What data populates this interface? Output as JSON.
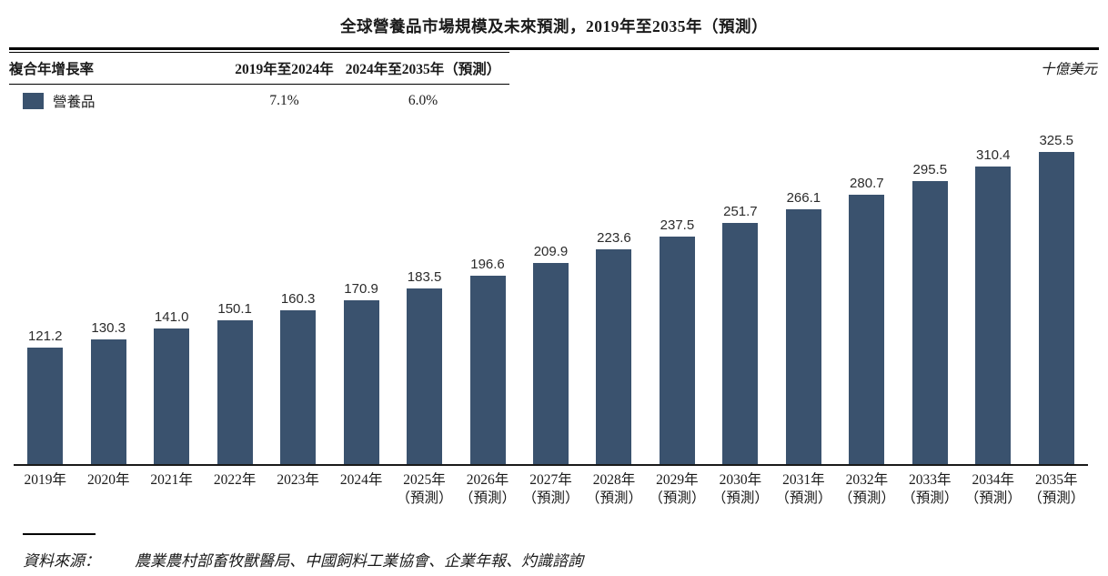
{
  "title": "全球營養品市場規模及未來預測，2019年至2035年（預測）",
  "unit_label": "十億美元",
  "cagr_table": {
    "row_header": "複合年增長率",
    "period1_header": "2019年至2024年",
    "period2_header": "2024年至2035年（預測）",
    "legend_label": "營養品",
    "period1_value": "7.1%",
    "period2_value": "6.0%"
  },
  "source": {
    "label": "資料來源：",
    "text": "農業農村部畜牧獸醫局、中國飼料工業協會、企業年報、灼識諮詢"
  },
  "colors": {
    "bar": "#3a526e",
    "axis": "#1a1a1a",
    "rule": "#000000"
  },
  "chart_data": {
    "type": "bar",
    "title": "全球營養品市場規模及未來預測，2019年至2035年（預測）",
    "ylabel": "十億美元",
    "ylim": [
      0,
      343
    ],
    "grid": false,
    "legend_position": "top-left",
    "cagr": [
      {
        "period": "2019年至2024年",
        "value": "7.1%"
      },
      {
        "period": "2024年至2035年（預測）",
        "value": "6.0%"
      }
    ],
    "categories": [
      {
        "year": "2019年",
        "note": ""
      },
      {
        "year": "2020年",
        "note": ""
      },
      {
        "year": "2021年",
        "note": ""
      },
      {
        "year": "2022年",
        "note": ""
      },
      {
        "year": "2023年",
        "note": ""
      },
      {
        "year": "2024年",
        "note": ""
      },
      {
        "year": "2025年",
        "note": "（預測）"
      },
      {
        "year": "2026年",
        "note": "（預測）"
      },
      {
        "year": "2027年",
        "note": "（預測）"
      },
      {
        "year": "2028年",
        "note": "（預測）"
      },
      {
        "year": "2029年",
        "note": "（預測）"
      },
      {
        "year": "2030年",
        "note": "（預測）"
      },
      {
        "year": "2031年",
        "note": "（預測）"
      },
      {
        "year": "2032年",
        "note": "（預測）"
      },
      {
        "year": "2033年",
        "note": "（預測）"
      },
      {
        "year": "2034年",
        "note": "（預測）"
      },
      {
        "year": "2035年",
        "note": "（預測）"
      }
    ],
    "series": [
      {
        "name": "營養品",
        "values": [
          121.2,
          130.3,
          141.0,
          150.1,
          160.3,
          170.9,
          183.5,
          196.6,
          209.9,
          223.6,
          237.5,
          251.7,
          266.1,
          280.7,
          295.5,
          310.4,
          325.5
        ]
      }
    ]
  }
}
